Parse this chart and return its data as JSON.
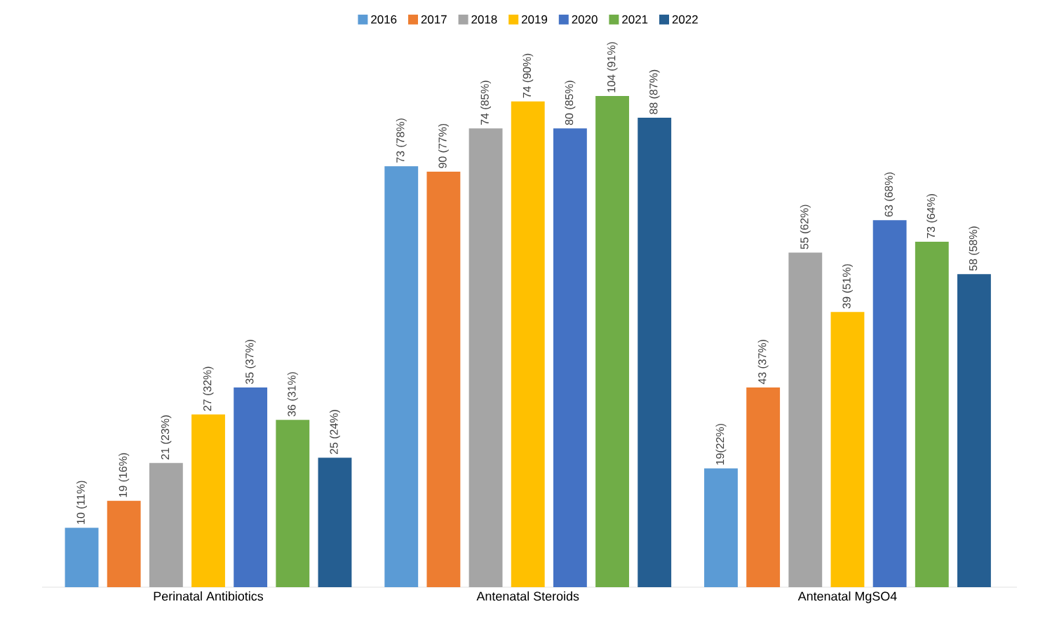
{
  "chart_data": {
    "type": "bar",
    "legend": "top",
    "categories": [
      "Perinatal Antibiotics",
      "Antenatal Steroids",
      "Antenatal MgSO4"
    ],
    "series": [
      {
        "name": "2016",
        "color": "#5b9bd5",
        "values": [
          11,
          78,
          22
        ],
        "value_labels": [
          "10 (11%)",
          "73 (78%)",
          "19(22%)"
        ]
      },
      {
        "name": "2017",
        "color": "#ed7d31",
        "values": [
          16,
          77,
          37
        ],
        "value_labels": [
          "19 (16%)",
          "90 (77%)",
          "43 (37%)"
        ]
      },
      {
        "name": "2018",
        "color": "#a5a5a5",
        "values": [
          23,
          85,
          62
        ],
        "value_labels": [
          "21 (23%)",
          "74 (85%)",
          "55 (62%)"
        ]
      },
      {
        "name": "2019",
        "color": "#ffc000",
        "values": [
          32,
          90,
          51
        ],
        "value_labels": [
          "27 (32%)",
          "74 (90%)",
          "39 (51%)"
        ]
      },
      {
        "name": "2020",
        "color": "#4472c4",
        "values": [
          37,
          85,
          68
        ],
        "value_labels": [
          "35 (37%)",
          "80 (85%)",
          "63 (68%)"
        ]
      },
      {
        "name": "2021",
        "color": "#70ad47",
        "values": [
          31,
          91,
          64
        ],
        "value_labels": [
          "36 (31%)",
          "104 (91%)",
          "73 (64%)"
        ]
      },
      {
        "name": "2022",
        "color": "#255e91",
        "values": [
          24,
          87,
          58
        ],
        "value_labels": [
          "25 (24%)",
          "88 (87%)",
          "58 (58%)"
        ]
      }
    ]
  }
}
